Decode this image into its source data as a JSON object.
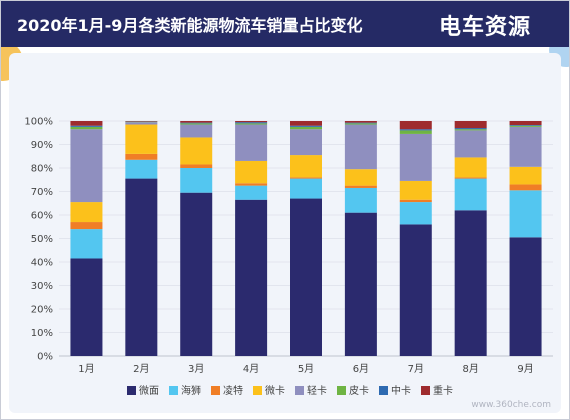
{
  "header": {
    "title": "2020年1月-9月各类新能源物流车销量占比变化",
    "brand": "电车资源"
  },
  "watermark": "www.360che.com",
  "colors": {
    "header_bg": "#252a65",
    "panel_bg": "#f1f4fa",
    "axis_text": "#444444",
    "grid": "#e2e5ee"
  },
  "chart_data": {
    "type": "bar",
    "stacked": true,
    "title": "2020年1月-9月各类新能源物流车销量占比变化",
    "categories": [
      "1月",
      "2月",
      "3月",
      "4月",
      "5月",
      "6月",
      "7月",
      "8月",
      "9月"
    ],
    "yticks": [
      "0%",
      "10%",
      "20%",
      "30%",
      "40%",
      "50%",
      "60%",
      "70%",
      "80%",
      "90%",
      "100%"
    ],
    "ylim": [
      0,
      100
    ],
    "grid": true,
    "legend_position": "bottom",
    "series": [
      {
        "name": "微面",
        "color": "#2b2a6e",
        "values": [
          41.5,
          75.5,
          69.5,
          66.5,
          67.0,
          61.0,
          56.0,
          62.0,
          50.5
        ]
      },
      {
        "name": "海狮",
        "color": "#53c6f0",
        "values": [
          12.5,
          8.0,
          10.5,
          6.0,
          8.5,
          10.5,
          9.5,
          13.5,
          20.0
        ]
      },
      {
        "name": "凌特",
        "color": "#f07e26",
        "values": [
          3.0,
          2.5,
          1.5,
          1.0,
          0.5,
          1.0,
          1.0,
          0.5,
          2.5
        ]
      },
      {
        "name": "微卡",
        "color": "#fcc11b",
        "values": [
          8.5,
          12.5,
          11.5,
          9.5,
          9.5,
          7.0,
          8.0,
          8.5,
          7.5
        ]
      },
      {
        "name": "轻卡",
        "color": "#8f8fbf",
        "values": [
          31.0,
          1.0,
          5.5,
          15.5,
          11.0,
          19.0,
          20.0,
          11.5,
          17.0
        ]
      },
      {
        "name": "皮卡",
        "color": "#6fb443",
        "values": [
          1.0,
          0.2,
          0.5,
          0.5,
          1.0,
          0.5,
          1.5,
          0.5,
          0.5
        ]
      },
      {
        "name": "中卡",
        "color": "#2e6ab1",
        "values": [
          0.5,
          0.1,
          0.3,
          0.5,
          0.5,
          0.3,
          0.5,
          0.5,
          0.3
        ]
      },
      {
        "name": "重卡",
        "color": "#9e2b2e",
        "values": [
          2.0,
          0.2,
          0.7,
          0.5,
          2.0,
          0.7,
          3.5,
          3.0,
          1.7
        ]
      }
    ]
  }
}
